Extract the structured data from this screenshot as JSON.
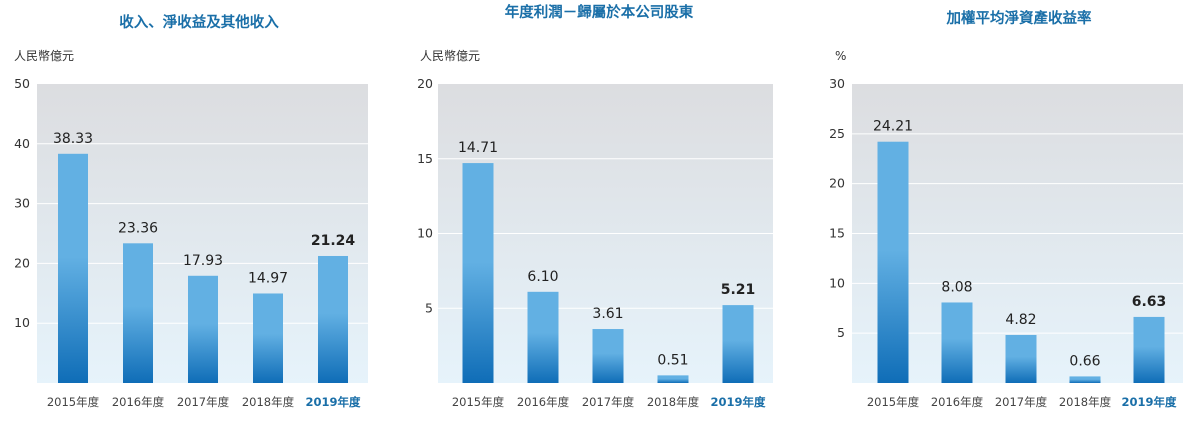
{
  "chart_data": [
    {
      "type": "bar",
      "title": "收入、淨收益及其他收入",
      "unit_label": "人民幣億元",
      "categories": [
        "2015年度",
        "2016年度",
        "2017年度",
        "2018年度",
        "2019年度"
      ],
      "values": [
        38.33,
        23.36,
        17.93,
        14.97,
        21.24
      ],
      "value_labels": [
        "38.33",
        "23.36",
        "17.93",
        "14.97",
        "21.24"
      ],
      "ylim": [
        0,
        50
      ],
      "yticks": [
        10,
        20,
        30,
        40,
        50
      ],
      "highlight_index": 4,
      "grid": true
    },
    {
      "type": "bar",
      "title": "年度利潤－歸屬於本公司股東",
      "unit_label": "人民幣億元",
      "categories": [
        "2015年度",
        "2016年度",
        "2017年度",
        "2018年度",
        "2019年度"
      ],
      "values": [
        14.71,
        6.1,
        3.61,
        0.51,
        5.21
      ],
      "value_labels": [
        "14.71",
        "6.10",
        "3.61",
        "0.51",
        "5.21"
      ],
      "ylim": [
        0,
        20
      ],
      "yticks": [
        5,
        10,
        15,
        20
      ],
      "highlight_index": 4,
      "grid": true
    },
    {
      "type": "bar",
      "title": "加權平均淨資產收益率",
      "unit_label": "%",
      "categories": [
        "2015年度",
        "2016年度",
        "2017年度",
        "2018年度",
        "2019年度"
      ],
      "values": [
        24.21,
        8.08,
        4.82,
        0.66,
        6.63
      ],
      "value_labels": [
        "24.21",
        "8.08",
        "4.82",
        "0.66",
        "6.63"
      ],
      "ylim": [
        0,
        30
      ],
      "yticks": [
        5,
        10,
        15,
        20,
        25,
        30
      ],
      "highlight_index": 4,
      "grid": true
    }
  ],
  "colors": {
    "title": "#1a6fa8",
    "highlight_label": "#1a6fa8",
    "bar_top": "#62b0e3",
    "bar_bottom": "#0f6db7",
    "plot_bg_top": "#dcdde0",
    "plot_bg_bottom": "#e6f3fb"
  }
}
